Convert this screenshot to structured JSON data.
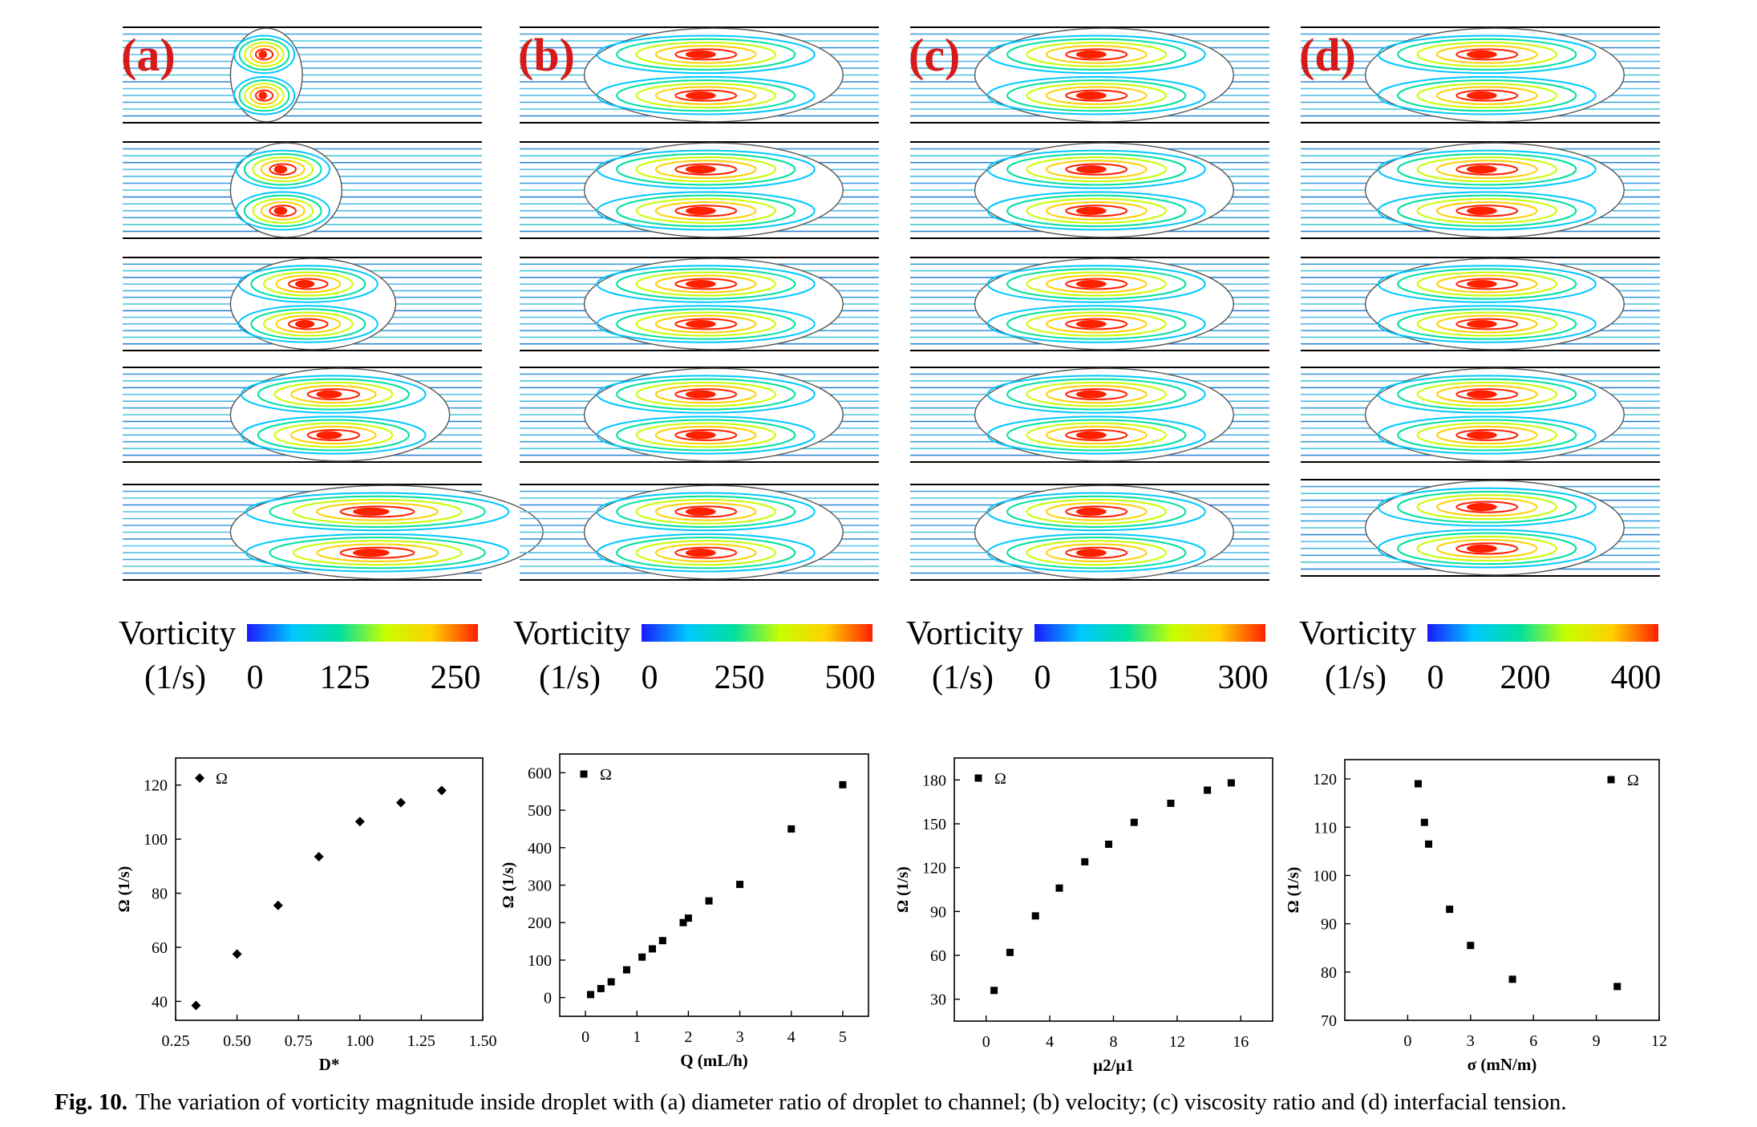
{
  "figure": {
    "caption_label": "Fig. 10.",
    "caption_text": "The variation of vorticity magnitude inside droplet with (a) diameter ratio of droplet to channel; (b) velocity; (c) viscosity ratio and (d) interfacial tension.",
    "colormap": [
      "#1a1aff",
      "#00c8ff",
      "#00e0a0",
      "#c8ff00",
      "#ffd000",
      "#ff2000"
    ],
    "panels": [
      {
        "label": "(a)",
        "colorbar": {
          "title": "Vorticity",
          "unit": "(1/s)",
          "ticks": [
            "0",
            "125",
            "250"
          ]
        },
        "droplet_lengths": [
          0.2,
          0.31,
          0.46,
          0.61,
          0.87
        ],
        "droplet_heights": [
          0.98,
          0.98,
          0.98,
          0.98,
          0.98
        ]
      },
      {
        "label": "(b)",
        "colorbar": {
          "title": "Vorticity",
          "unit": "(1/s)",
          "ticks": [
            "0",
            "250",
            "500"
          ]
        },
        "droplet_lengths": [
          0.72,
          0.72,
          0.72,
          0.72,
          0.72
        ],
        "droplet_heights": [
          0.98,
          0.98,
          0.98,
          0.98,
          0.98
        ]
      },
      {
        "label": "(c)",
        "colorbar": {
          "title": "Vorticity",
          "unit": "(1/s)",
          "ticks": [
            "0",
            "150",
            "300"
          ]
        },
        "droplet_lengths": [
          0.72,
          0.72,
          0.72,
          0.72,
          0.72
        ],
        "droplet_heights": [
          0.98,
          0.98,
          0.98,
          0.98,
          0.98
        ]
      },
      {
        "label": "(d)",
        "colorbar": {
          "title": "Vorticity",
          "unit": "(1/s)",
          "ticks": [
            "0",
            "200",
            "400"
          ]
        },
        "droplet_lengths": [
          0.72,
          0.72,
          0.72,
          0.72,
          0.72
        ],
        "droplet_heights": [
          0.98,
          0.98,
          0.98,
          0.98,
          0.98
        ]
      }
    ]
  },
  "chart_data": [
    {
      "type": "scatter",
      "xlabel": "D*",
      "ylabel": "Ω (1/s)",
      "xlim": [
        0.25,
        1.5
      ],
      "ylim": [
        33,
        130
      ],
      "xticks": [
        "0.25",
        "0.50",
        "0.75",
        "1.00",
        "1.25",
        "1.50"
      ],
      "xtick_values": [
        0.25,
        0.5,
        0.75,
        1.0,
        1.25,
        1.5
      ],
      "yticks": [
        "40",
        "60",
        "80",
        "100",
        "120"
      ],
      "ytick_values": [
        40,
        60,
        80,
        100,
        120
      ],
      "marker": "diamond",
      "legend": "top-left",
      "series": [
        {
          "name": "Ω",
          "x": [
            0.333,
            0.5,
            0.667,
            0.833,
            1.0,
            1.167,
            1.333
          ],
          "y": [
            38.5,
            57.5,
            75.5,
            93.5,
            106.5,
            113.5,
            118
          ]
        }
      ]
    },
    {
      "type": "scatter",
      "xlabel": "Q (mL/h)",
      "ylabel": "Ω (1/s)",
      "xlim": [
        -0.5,
        5.5
      ],
      "ylim": [
        -50,
        650
      ],
      "xticks": [
        "0",
        "1",
        "2",
        "3",
        "4",
        "5"
      ],
      "xtick_values": [
        0,
        1,
        2,
        3,
        4,
        5
      ],
      "yticks": [
        "0",
        "100",
        "200",
        "300",
        "400",
        "500",
        "600"
      ],
      "ytick_values": [
        0,
        100,
        200,
        300,
        400,
        500,
        600
      ],
      "marker": "square",
      "legend": "top-left",
      "series": [
        {
          "name": "Ω",
          "x": [
            0.1,
            0.3,
            0.5,
            0.8,
            1.1,
            1.3,
            1.5,
            1.9,
            2.0,
            2.4,
            3.0,
            4.0,
            5.0
          ],
          "y": [
            8,
            24,
            42,
            74,
            108,
            130,
            152,
            200,
            212,
            258,
            302,
            450,
            568
          ]
        }
      ]
    },
    {
      "type": "scatter",
      "xlabel": "μ2/μ1",
      "ylabel": "Ω (1/s)",
      "xlim": [
        -2,
        18
      ],
      "ylim": [
        15,
        195
      ],
      "xticks": [
        "0",
        "4",
        "8",
        "12",
        "16"
      ],
      "xtick_values": [
        0,
        4,
        8,
        12,
        16
      ],
      "yticks": [
        "30",
        "60",
        "90",
        "120",
        "150",
        "180"
      ],
      "ytick_values": [
        30,
        60,
        90,
        120,
        150,
        180
      ],
      "marker": "square",
      "legend": "top-left",
      "series": [
        {
          "name": "Ω",
          "x": [
            0.5,
            1.5,
            3.1,
            4.6,
            6.2,
            7.7,
            9.3,
            11.6,
            13.9,
            15.4
          ],
          "y": [
            36,
            62,
            87,
            106,
            124,
            136,
            151,
            164,
            173,
            178
          ]
        }
      ]
    },
    {
      "type": "scatter",
      "xlabel": "σ (mN/m)",
      "ylabel": "Ω (1/s)",
      "xlim": [
        -3,
        12
      ],
      "ylim": [
        70,
        124
      ],
      "xticks": [
        "0",
        "3",
        "6",
        "9",
        "12"
      ],
      "xtick_values": [
        0,
        3,
        6,
        9,
        12
      ],
      "yticks": [
        "70",
        "80",
        "90",
        "100",
        "110",
        "120"
      ],
      "ytick_values": [
        70,
        80,
        90,
        100,
        110,
        120
      ],
      "marker": "square",
      "legend": "top-right",
      "series": [
        {
          "name": "Ω",
          "x": [
            0.5,
            0.8,
            1.0,
            2.0,
            3.0,
            5.0,
            10.0
          ],
          "y": [
            119,
            111,
            106.5,
            93,
            85.5,
            78.5,
            77
          ]
        }
      ]
    }
  ]
}
